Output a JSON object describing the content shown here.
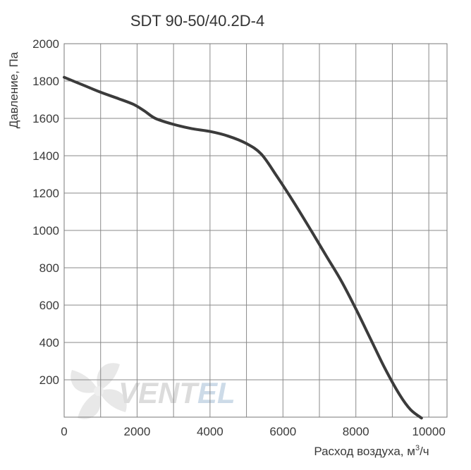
{
  "chart_data": {
    "type": "line",
    "title": "SDT 90-50/40.2D-4",
    "xlabel": "Расход воздуха, м",
    "xlabel_sup": "3",
    "xlabel_suffix": "/ч",
    "ylabel": "Давление, Па",
    "xlim": [
      0,
      10500
    ],
    "ylim": [
      0,
      2000
    ],
    "xticks": [
      0,
      2000,
      4000,
      6000,
      8000,
      10000
    ],
    "xtick_labels": [
      "0",
      "2000",
      "4000",
      "6000",
      "8000",
      "10000"
    ],
    "yticks": [
      200,
      400,
      600,
      800,
      1000,
      1200,
      1400,
      1600,
      1800,
      2000
    ],
    "ytick_labels": [
      "200",
      "400",
      "600",
      "800",
      "1000",
      "1200",
      "1400",
      "1600",
      "1800",
      "2000"
    ],
    "grid": true,
    "series": [
      {
        "color": "#3b3b3b",
        "x": [
          0,
          500,
          1000,
          1500,
          1900,
          2200,
          2500,
          3000,
          3500,
          4000,
          4500,
          5000,
          5400,
          5800,
          6300,
          6800,
          7200,
          7600,
          8000,
          8400,
          8800,
          9200,
          9500,
          9800
        ],
        "y": [
          1820,
          1780,
          1740,
          1705,
          1675,
          1640,
          1600,
          1568,
          1545,
          1530,
          1505,
          1465,
          1410,
          1300,
          1150,
          990,
          860,
          730,
          580,
          420,
          260,
          120,
          40,
          -5
        ]
      }
    ]
  },
  "watermark": {
    "brand_text": "VENTEL",
    "brand_text_a": "VENT",
    "brand_text_b": "EL",
    "color_a": "#d9d9d9",
    "color_b": "#c8d8e6",
    "icon": "fan-icon"
  }
}
